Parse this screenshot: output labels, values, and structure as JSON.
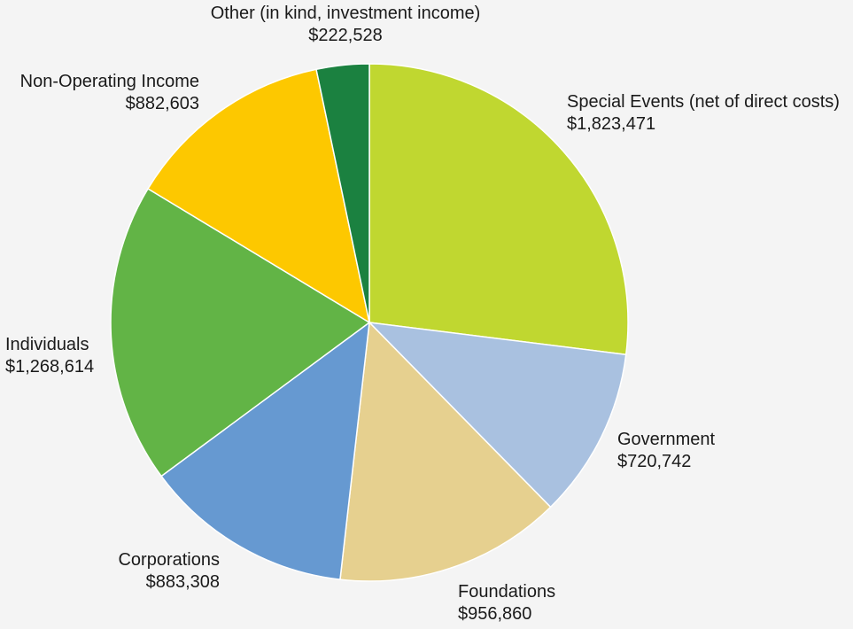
{
  "chart_data": {
    "type": "pie",
    "start_angle_deg": 0,
    "direction": "clockwise",
    "slices": [
      {
        "label": "Special Events (net of direct costs)",
        "value_text": "$1,823,471",
        "value": 1823471,
        "color": "#c0d730"
      },
      {
        "label": "Government",
        "value_text": "$720,742",
        "value": 720742,
        "color": "#a9c1e0"
      },
      {
        "label": "Foundations",
        "value_text": "$956,860",
        "value": 956860,
        "color": "#e6d08f"
      },
      {
        "label": "Corporations",
        "value_text": "$883,308",
        "value": 883308,
        "color": "#6699d1"
      },
      {
        "label": "Individuals",
        "value_text": "$1,268,614",
        "value": 1268614,
        "color": "#62b446"
      },
      {
        "label": "Non-Operating Income",
        "value_text": "$882,603",
        "value": 882603,
        "color": "#fdc800"
      },
      {
        "label": "Other (in kind, investment income)",
        "value_text": "$222,528",
        "value": 222528,
        "color": "#1b8140"
      }
    ]
  }
}
